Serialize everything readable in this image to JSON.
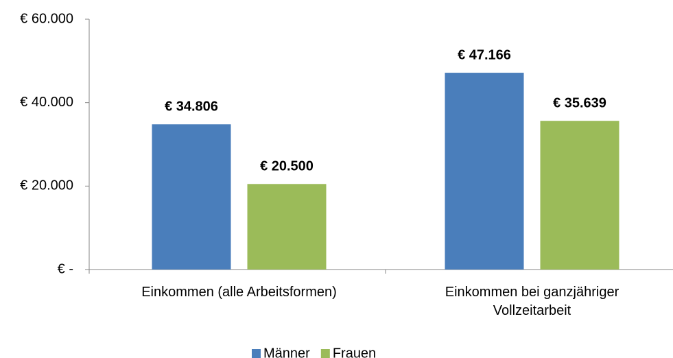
{
  "chart_data": {
    "type": "bar",
    "categories": [
      "Einkommen (alle Arbeitsformen)",
      "Einkommen bei ganzjähriger Vollzeitarbeit"
    ],
    "series": [
      {
        "name": "Männer",
        "color": "#4a7ebb",
        "values": [
          34806,
          47166
        ],
        "value_labels": [
          "€ 34.806",
          "€ 47.166"
        ]
      },
      {
        "name": "Frauen",
        "color": "#9bbb59",
        "values": [
          20500,
          35639
        ],
        "value_labels": [
          "€ 20.500",
          "€ 35.639"
        ]
      }
    ],
    "ylim": [
      0,
      60000
    ],
    "yticks": [
      {
        "value": 0,
        "label": "€ -"
      },
      {
        "value": 20000,
        "label": "€ 20.000"
      },
      {
        "value": 40000,
        "label": "€ 40.000"
      },
      {
        "value": 60000,
        "label": "€ 60.000"
      }
    ],
    "grid": false,
    "legend": "bottom"
  }
}
